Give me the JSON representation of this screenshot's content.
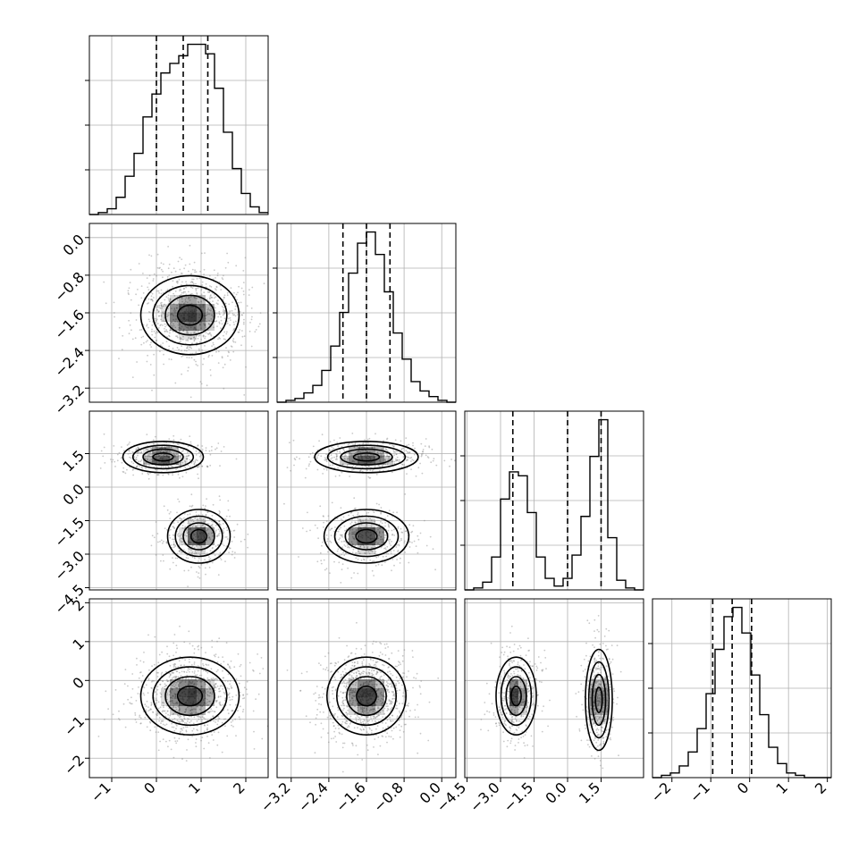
{
  "chart_data": {
    "type": "corner",
    "parameters": 4,
    "title": "",
    "grid": true,
    "diagonal_histograms": [
      {
        "param": 0,
        "xlim": [
          -1.5,
          2.5
        ],
        "bins": [
          -1.5,
          -1.3,
          -1.1,
          -0.9,
          -0.7,
          -0.5,
          -0.3,
          -0.1,
          0.1,
          0.3,
          0.5,
          0.7,
          0.9,
          1.1,
          1.3,
          1.5,
          1.7,
          1.9,
          2.1,
          2.3,
          2.5
        ],
        "counts": [
          0,
          1,
          3,
          9,
          20,
          32,
          51,
          63,
          74,
          79,
          83,
          89,
          89,
          84,
          66,
          43,
          24,
          11,
          4,
          1
        ],
        "quantiles": [
          0.0,
          0.6,
          1.15
        ]
      },
      {
        "param": 1,
        "xlim": [
          -3.5,
          0.3
        ],
        "bins": [
          -3.5,
          -3.31,
          -3.12,
          -2.93,
          -2.74,
          -2.55,
          -2.36,
          -2.17,
          -1.98,
          -1.79,
          -1.6,
          -1.41,
          -1.22,
          -1.03,
          -0.84,
          -0.65,
          -0.46,
          -0.27,
          -0.08,
          0.11,
          0.3
        ],
        "counts": [
          0,
          1,
          2,
          5,
          9,
          17,
          30,
          48,
          69,
          85,
          91,
          79,
          59,
          37,
          23,
          11,
          6,
          3,
          1,
          0
        ],
        "quantiles": [
          -2.1,
          -1.6,
          -1.1
        ]
      },
      {
        "param": 2,
        "xlim": [
          -4.6,
          3.4
        ],
        "bins": [
          -4.6,
          -4.2,
          -3.8,
          -3.4,
          -3.0,
          -2.6,
          -2.2,
          -1.8,
          -1.4,
          -1.0,
          -0.6,
          -0.2,
          0.2,
          0.6,
          1.0,
          1.4,
          1.8,
          2.2,
          2.6,
          3.0,
          3.4
        ],
        "counts": [
          0,
          1,
          4,
          17,
          47,
          61,
          59,
          40,
          17,
          6,
          2,
          6,
          18,
          38,
          69,
          88,
          27,
          5,
          1,
          0
        ],
        "quantiles": [
          -2.45,
          0.0,
          1.5
        ]
      },
      {
        "param": 3,
        "xlim": [
          -2.5,
          2.1
        ],
        "bins": [
          -2.5,
          -2.27,
          -2.04,
          -1.81,
          -1.58,
          -1.35,
          -1.12,
          -0.89,
          -0.66,
          -0.43,
          -0.2,
          0.03,
          0.26,
          0.49,
          0.72,
          0.95,
          1.18,
          1.41,
          1.64,
          1.87,
          2.1
        ],
        "counts": [
          0,
          1,
          2,
          5,
          11,
          21,
          36,
          55,
          69,
          73,
          62,
          44,
          27,
          13,
          6,
          2,
          1,
          0,
          0,
          0
        ],
        "quantiles": [
          -0.95,
          -0.45,
          0.05
        ]
      }
    ],
    "axes_ticks": [
      {
        "param": 0,
        "ticks": [
          -1,
          0,
          1,
          2
        ],
        "tick_labels": [
          "−1",
          "0",
          "1",
          "2"
        ]
      },
      {
        "param": 1,
        "ticks": [
          -3.2,
          -2.4,
          -1.6,
          -0.8,
          0.0
        ],
        "tick_labels": [
          "−3.2",
          "−2.4",
          "−1.6",
          "−0.8",
          "0.0"
        ]
      },
      {
        "param": 2,
        "ticks": [
          -4.5,
          -3.0,
          -1.5,
          0.0,
          1.5
        ],
        "tick_labels": [
          "−4.5",
          "−3.0",
          "−1.5",
          "0.0",
          "1.5"
        ]
      },
      {
        "param": 3,
        "ticks": [
          -2,
          -1,
          0,
          1,
          2
        ],
        "tick_labels": [
          "−2",
          "−1",
          "0",
          "1",
          "2"
        ]
      }
    ],
    "joint_components": [
      {
        "x_param": 0,
        "y_param": 1,
        "blobs": [
          {
            "cx": 0.75,
            "cy": -1.65,
            "sx": 0.55,
            "sy": 0.42,
            "w": 1.0
          }
        ]
      },
      {
        "x_param": 0,
        "y_param": 2,
        "blobs": [
          {
            "cx": 0.15,
            "cy": 1.35,
            "sx": 0.45,
            "sy": 0.35,
            "w": 0.5
          },
          {
            "cx": 0.95,
            "cy": -2.2,
            "sx": 0.35,
            "sy": 0.6,
            "w": 0.5
          }
        ]
      },
      {
        "x_param": 1,
        "y_param": 2,
        "blobs": [
          {
            "cx": -1.6,
            "cy": 1.35,
            "sx": 0.55,
            "sy": 0.35,
            "w": 0.5
          },
          {
            "cx": -1.6,
            "cy": -2.2,
            "sx": 0.45,
            "sy": 0.6,
            "w": 0.5
          }
        ]
      },
      {
        "x_param": 0,
        "y_param": 3,
        "blobs": [
          {
            "cx": 0.75,
            "cy": -0.4,
            "sx": 0.55,
            "sy": 0.5,
            "w": 1.0
          }
        ]
      },
      {
        "x_param": 1,
        "y_param": 3,
        "blobs": [
          {
            "cx": -1.6,
            "cy": -0.4,
            "sx": 0.42,
            "sy": 0.5,
            "w": 1.0
          }
        ]
      },
      {
        "x_param": 2,
        "y_param": 3,
        "blobs": [
          {
            "cx": -2.3,
            "cy": -0.4,
            "sx": 0.45,
            "sy": 0.5,
            "w": 0.5
          },
          {
            "cx": 1.4,
            "cy": -0.5,
            "sx": 0.3,
            "sy": 0.65,
            "w": 0.5
          }
        ]
      }
    ],
    "colors": {
      "line": "#000000",
      "grid": "#b0b0b0",
      "density_dark": "#000000",
      "points": "#888888"
    }
  }
}
